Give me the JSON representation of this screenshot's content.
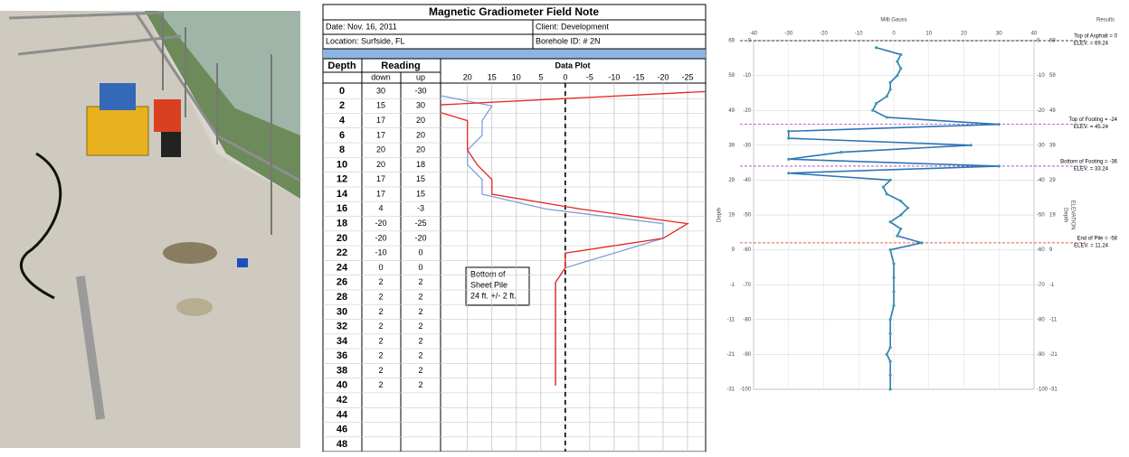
{
  "field_note": {
    "title": "Magnetic Gradiometer Field Note",
    "date": "Date: Nov. 16, 2011",
    "client": "Client: Development",
    "location": "Location: Surfside, FL",
    "borehole": "Borehole ID: # 2N",
    "columns": {
      "depth": "Depth",
      "reading": "Reading",
      "down": "down",
      "up": "up",
      "plot": "Data Plot"
    },
    "rows": {
      "depth": [
        0,
        2,
        4,
        6,
        8,
        10,
        12,
        14,
        16,
        18,
        20,
        22,
        24,
        26,
        28,
        30,
        32,
        34,
        36,
        38,
        40,
        42,
        44,
        46,
        48
      ],
      "down": [
        30,
        15,
        17,
        17,
        20,
        20,
        17,
        17,
        4,
        -20,
        -20,
        -10,
        0,
        2,
        2,
        2,
        2,
        2,
        2,
        2,
        2,
        null,
        null,
        null,
        null
      ],
      "up": [
        -30,
        30,
        20,
        20,
        20,
        18,
        15,
        15,
        -3,
        -25,
        -20,
        0,
        0,
        2,
        2,
        2,
        2,
        2,
        2,
        2,
        2,
        null,
        null,
        null,
        null
      ]
    },
    "plot": {
      "xlim": [
        25.5,
        -28.7
      ],
      "xticks": [
        20,
        15,
        10,
        5,
        0,
        -5,
        -10,
        -15,
        -20,
        -25
      ],
      "down_color": "#7f9fd8",
      "up_color": "#e8231f"
    },
    "annotation": [
      "Bottom of",
      "Sheet Pile",
      "24 ft. +/- 2 ft."
    ]
  },
  "chart_data": {
    "type": "line",
    "title": "Milli Gauss",
    "results_title": "Results",
    "y_label": "Depth",
    "y2_label": [
      "ELEVATION",
      "Depth"
    ],
    "depth": [
      -2,
      -4,
      -6,
      -8,
      -10,
      -12,
      -14,
      -16,
      -18,
      -20,
      -22,
      -24,
      -26,
      -28,
      -30,
      -32,
      -34,
      -36,
      -38,
      -40,
      -42,
      -44,
      -46,
      -48,
      -50,
      -52,
      -54,
      -56,
      -58,
      -60,
      -64,
      -68,
      -72,
      -76,
      -80,
      -84,
      -88,
      -90,
      -92,
      -96,
      -100
    ],
    "values": [
      -5,
      2,
      1,
      2,
      1,
      -1,
      -1,
      -2,
      -5,
      -6,
      -2,
      30,
      -30,
      -30,
      22,
      -15,
      -30,
      30,
      -30,
      -1,
      -3,
      -2,
      2,
      4,
      2,
      -1,
      2,
      1,
      8,
      -1,
      0,
      0,
      0,
      0,
      -1,
      -1,
      -1,
      -2,
      -1,
      -1,
      -1
    ],
    "color": "#2e75b6",
    "xlim": [
      -40,
      40
    ],
    "xticks": [
      -40,
      -30,
      -20,
      -10,
      0,
      10,
      20,
      30,
      40
    ],
    "ylim": [
      0,
      -100
    ],
    "yticks": [
      0,
      -10,
      -20,
      -30,
      -40,
      -50,
      -60,
      -70,
      -80,
      -90,
      -100
    ],
    "elevations": [
      69,
      59,
      49,
      39,
      29,
      19,
      9,
      -1,
      -11,
      -21,
      -31
    ],
    "grid": true,
    "markers": [
      {
        "depth": 0,
        "label": "Top of Asphalt = 0",
        "sublabel": "ELEV. = 69.24",
        "color": "#000000"
      },
      {
        "depth": -24,
        "label": "Top of Footing = -24",
        "sublabel": "ELEV. = 45.24",
        "color": "#a040c0"
      },
      {
        "depth": -36,
        "label": "Bottom of Footing = -36",
        "sublabel": "ELEV. = 33.24",
        "color": "#a040c0"
      },
      {
        "depth": -58,
        "label": "End of Pile = -58",
        "sublabel": "ELEV. = 11.24",
        "color": "#e8231f"
      }
    ]
  }
}
